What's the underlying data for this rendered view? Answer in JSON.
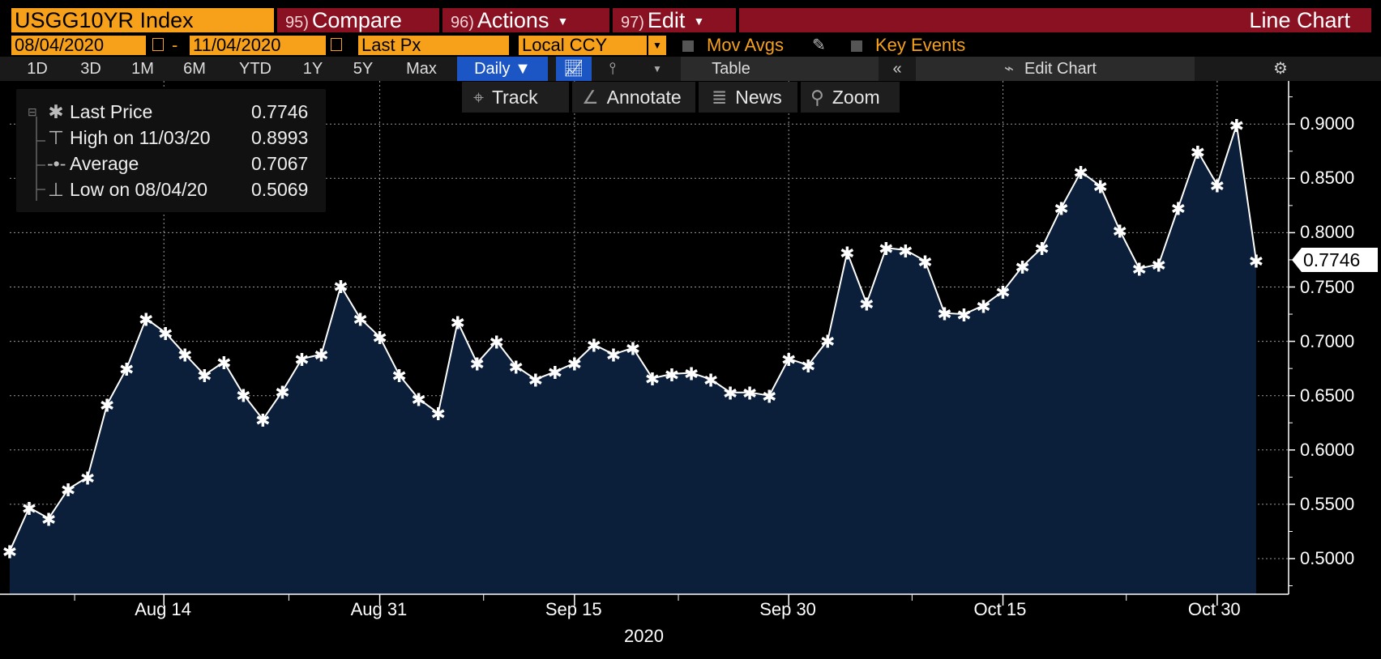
{
  "header": {
    "ticker": "USGG10YR Index",
    "compare": {
      "num": "95)",
      "label": "Compare"
    },
    "actions": {
      "num": "96)",
      "label": "Actions"
    },
    "edit": {
      "num": "97)",
      "label": "Edit"
    },
    "chart_type_label": "Line Chart"
  },
  "controls": {
    "start_date": "08/04/2020",
    "date_sep": "-",
    "end_date": "11/04/2020",
    "field": "Last Px",
    "currency": "Local CCY",
    "mov_avgs": "Mov Avgs",
    "key_events": "Key Events"
  },
  "ranges": [
    "1D",
    "3D",
    "1M",
    "6M",
    "YTD",
    "1Y",
    "5Y",
    "Max"
  ],
  "frequency": "Daily ▼",
  "table_label": "Table",
  "edit_chart_label": "Edit Chart",
  "chart_toolbar": {
    "track": "Track",
    "annotate": "Annotate",
    "news": "News",
    "zoom": "Zoom"
  },
  "legend": {
    "last": {
      "label": "Last Price",
      "value": "0.7746"
    },
    "high": {
      "label": "High on 11/03/20",
      "value": "0.8993"
    },
    "avg": {
      "label": "Average",
      "value": "0.7067"
    },
    "low": {
      "label": "Low on 08/04/20",
      "value": "0.5069"
    }
  },
  "last_value_tag": "0.7746",
  "colors": {
    "accent_orange": "#f7a11a",
    "header_red": "#8a1122",
    "area_fill": "#0b1e3a",
    "line": "#ffffff"
  },
  "chart_data": {
    "type": "area",
    "series": [
      {
        "name": "Last Price",
        "values": [
          0.5069,
          0.547,
          0.537,
          0.564,
          0.575,
          0.642,
          0.675,
          0.721,
          0.708,
          0.688,
          0.669,
          0.681,
          0.651,
          0.628,
          0.654,
          0.684,
          0.688,
          0.751,
          0.721,
          0.704,
          0.669,
          0.647,
          0.634,
          0.718,
          0.68,
          0.7,
          0.677,
          0.665,
          0.672,
          0.68,
          0.697,
          0.688,
          0.694,
          0.666,
          0.67,
          0.671,
          0.665,
          0.653,
          0.653,
          0.65,
          0.684,
          0.678,
          0.701,
          0.782,
          0.735,
          0.786,
          0.784,
          0.774,
          0.726,
          0.725,
          0.733,
          0.746,
          0.769,
          0.786,
          0.823,
          0.856,
          0.843,
          0.802,
          0.767,
          0.771,
          0.823,
          0.875,
          0.844,
          0.8993,
          0.7746
        ]
      }
    ],
    "x_dates": [
      "08/04",
      "08/05",
      "08/06",
      "08/07",
      "08/10",
      "08/11",
      "08/12",
      "08/13",
      "08/14",
      "08/17",
      "08/18",
      "08/19",
      "08/20",
      "08/21",
      "08/24",
      "08/25",
      "08/26",
      "08/27",
      "08/28",
      "08/31",
      "09/01",
      "09/02",
      "09/03",
      "09/04",
      "09/08",
      "09/09",
      "09/10",
      "09/11",
      "09/14",
      "09/15",
      "09/16",
      "09/17",
      "09/18",
      "09/21",
      "09/22",
      "09/23",
      "09/24",
      "09/25",
      "09/28",
      "09/29",
      "09/30",
      "10/01",
      "10/02",
      "10/05",
      "10/06",
      "10/07",
      "10/08",
      "10/09",
      "10/12",
      "10/13",
      "10/14",
      "10/15",
      "10/16",
      "10/19",
      "10/20",
      "10/21",
      "10/22",
      "10/23",
      "10/26",
      "10/27",
      "10/28",
      "10/29",
      "10/30",
      "11/03",
      "11/04"
    ],
    "x_tick_labels": [
      "Aug 14",
      "Aug 31",
      "Sep 15",
      "Sep 30",
      "Oct 15",
      "Oct 30"
    ],
    "x_axis_year": "2020",
    "y_tick_labels": [
      "0.5000",
      "0.5500",
      "0.6000",
      "0.6500",
      "0.7000",
      "0.7500",
      "0.8000",
      "0.8500",
      "0.9000"
    ],
    "ylim": [
      0.475,
      0.93
    ],
    "grid": true,
    "legend_position": "top-left"
  }
}
